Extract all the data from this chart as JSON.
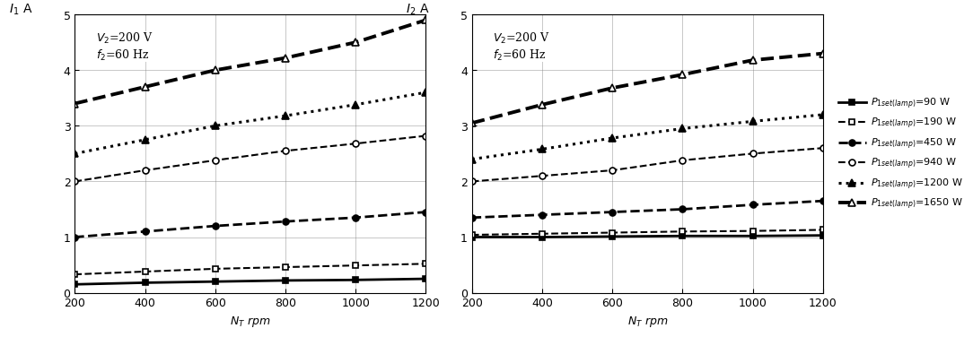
{
  "x": [
    200,
    400,
    600,
    800,
    1000,
    1200
  ],
  "left_ylabel": "$I_1$ A",
  "right_ylabel": "$I_2$ A",
  "xlabel": "$N_T$ rpm",
  "annotation": "$V_2$=200 V\n$f_2$=60 Hz",
  "ylim": [
    0,
    5
  ],
  "yticks": [
    0,
    1,
    2,
    3,
    4,
    5
  ],
  "xticks": [
    200,
    400,
    600,
    800,
    1000,
    1200
  ],
  "series": [
    {
      "label": "$P_{1set(lamp)}$=90 W",
      "left_y": [
        0.15,
        0.18,
        0.2,
        0.22,
        0.23,
        0.25
      ],
      "right_y": [
        1.0,
        1.0,
        1.01,
        1.02,
        1.02,
        1.03
      ],
      "linestyle": "-",
      "marker": "s",
      "fillstyle": "full",
      "linewidth": 2.0,
      "markersize": 5
    },
    {
      "label": "$P_{1set(lamp)}$=190 W",
      "left_y": [
        0.33,
        0.38,
        0.43,
        0.46,
        0.49,
        0.52
      ],
      "right_y": [
        1.04,
        1.06,
        1.08,
        1.1,
        1.11,
        1.13
      ],
      "linestyle": "--",
      "marker": "s",
      "fillstyle": "none",
      "linewidth": 1.5,
      "markersize": 5
    },
    {
      "label": "$P_{1set(lamp)}$=450 W",
      "left_y": [
        1.0,
        1.1,
        1.2,
        1.28,
        1.35,
        1.45
      ],
      "right_y": [
        1.35,
        1.4,
        1.45,
        1.5,
        1.58,
        1.65
      ],
      "linestyle": "--",
      "marker": "o",
      "fillstyle": "full",
      "linewidth": 2.0,
      "markersize": 5
    },
    {
      "label": "$P_{1set(lamp)}$=940 W",
      "left_y": [
        2.0,
        2.2,
        2.38,
        2.55,
        2.68,
        2.82
      ],
      "right_y": [
        2.0,
        2.1,
        2.2,
        2.38,
        2.5,
        2.6
      ],
      "linestyle": "--",
      "marker": "o",
      "fillstyle": "none",
      "linewidth": 1.5,
      "markersize": 5
    },
    {
      "label": "$P_{1set(lamp)}$=1200 W",
      "left_y": [
        2.5,
        2.75,
        3.0,
        3.18,
        3.38,
        3.6
      ],
      "right_y": [
        2.4,
        2.58,
        2.78,
        2.95,
        3.08,
        3.2
      ],
      "linestyle": ":",
      "marker": "^",
      "fillstyle": "full",
      "linewidth": 2.2,
      "markersize": 6
    },
    {
      "label": "$P_{1set(lamp)}$=1650 W",
      "left_y": [
        3.4,
        3.7,
        4.0,
        4.22,
        4.5,
        4.9
      ],
      "right_y": [
        3.05,
        3.38,
        3.68,
        3.92,
        4.18,
        4.3
      ],
      "linestyle": "--",
      "marker": "^",
      "fillstyle": "none",
      "linewidth": 2.8,
      "markersize": 6
    }
  ]
}
